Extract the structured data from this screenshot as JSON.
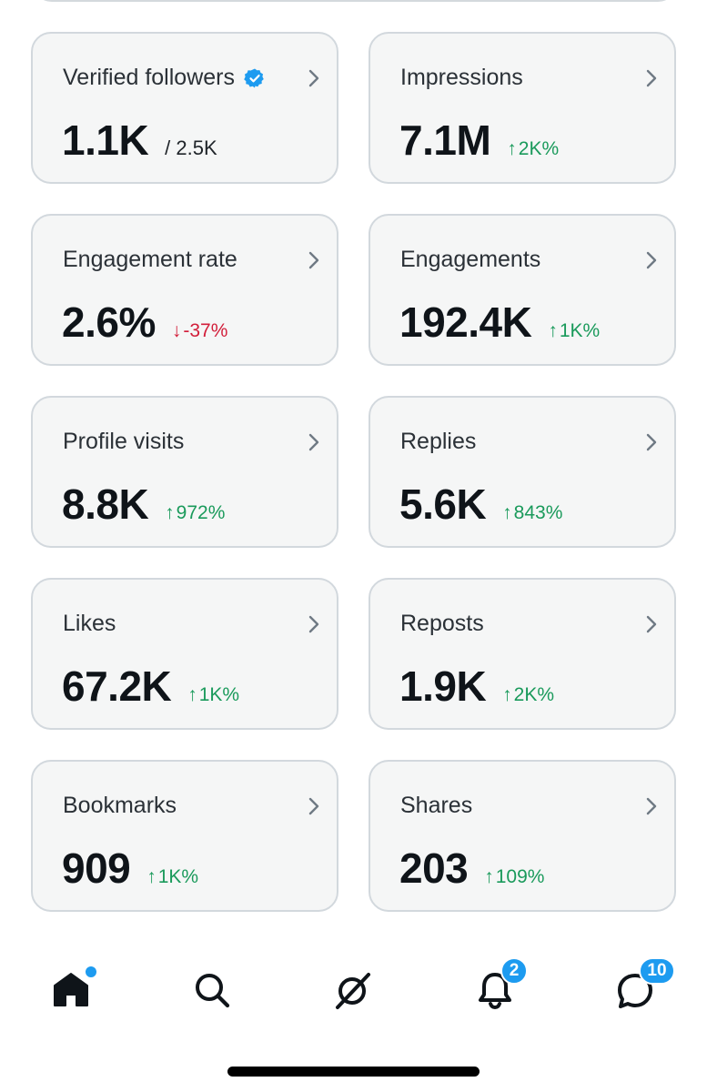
{
  "cards": [
    {
      "label": "Verified followers",
      "value": "1.1K",
      "sub": "/ 2.5K"
    },
    {
      "label": "Impressions",
      "value": "7.1M",
      "delta": {
        "dir": "up",
        "arrow": "↑",
        "text": "2K%"
      }
    },
    {
      "label": "Engagement rate",
      "value": "2.6%",
      "delta": {
        "dir": "down",
        "arrow": "↓",
        "text": "-37%"
      }
    },
    {
      "label": "Engagements",
      "value": "192.4K",
      "delta": {
        "dir": "up",
        "arrow": "↑",
        "text": "1K%"
      }
    },
    {
      "label": "Profile visits",
      "value": "8.8K",
      "delta": {
        "dir": "up",
        "arrow": "↑",
        "text": "972%"
      }
    },
    {
      "label": "Replies",
      "value": "5.6K",
      "delta": {
        "dir": "up",
        "arrow": "↑",
        "text": "843%"
      }
    },
    {
      "label": "Likes",
      "value": "67.2K",
      "delta": {
        "dir": "up",
        "arrow": "↑",
        "text": "1K%"
      }
    },
    {
      "label": "Reposts",
      "value": "1.9K",
      "delta": {
        "dir": "up",
        "arrow": "↑",
        "text": "2K%"
      }
    },
    {
      "label": "Bookmarks",
      "value": "909",
      "delta": {
        "dir": "up",
        "arrow": "↑",
        "text": "1K%"
      }
    },
    {
      "label": "Shares",
      "value": "203",
      "delta": {
        "dir": "up",
        "arrow": "↑",
        "text": "109%"
      }
    }
  ],
  "tabbar": {
    "home_icon": "home-icon",
    "search_icon": "search-icon",
    "grok_icon": "grok-icon",
    "notifications_icon": "bell-icon",
    "messages_icon": "chat-bubble-icon",
    "notifications_badge": "2",
    "messages_badge": "10"
  },
  "colors": {
    "accent": "#1d9bf0",
    "positive": "#1a9a5b",
    "negative": "#d21e3a"
  }
}
